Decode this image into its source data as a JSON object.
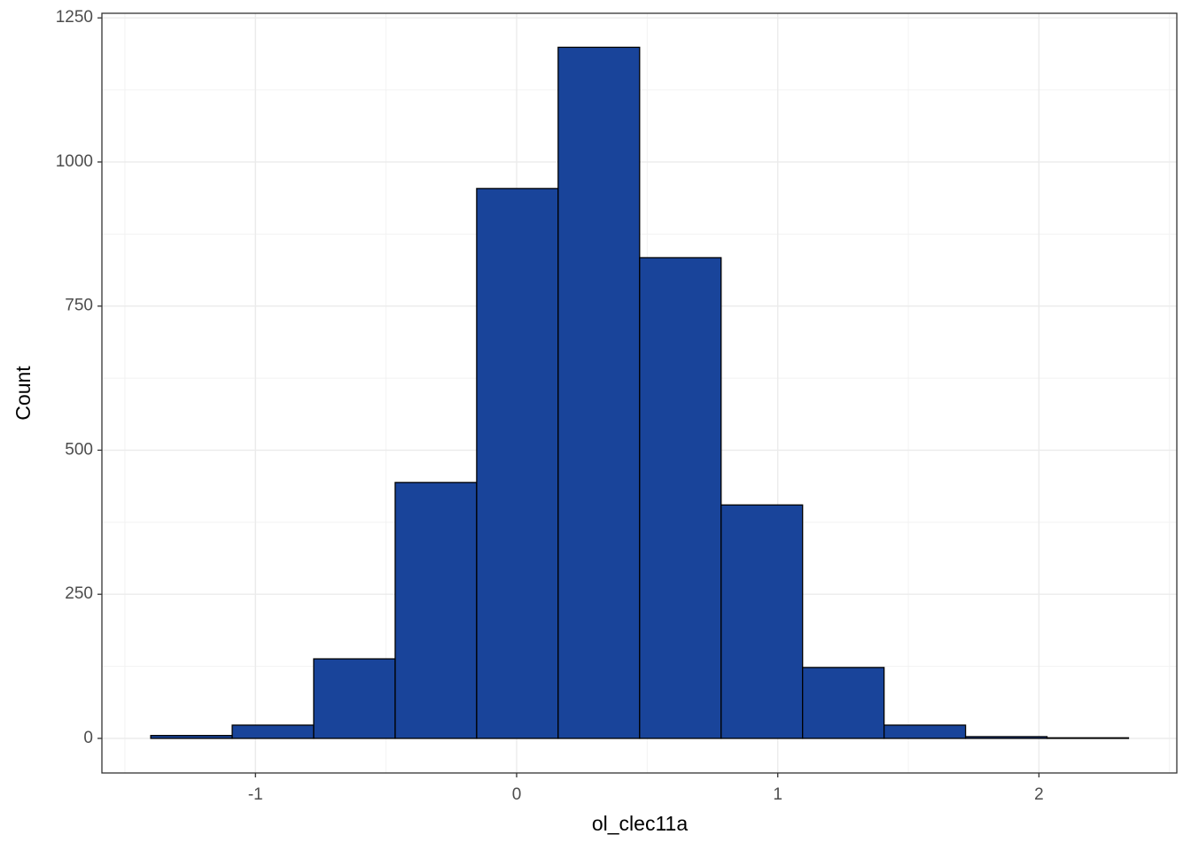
{
  "chart_data": {
    "type": "histogram",
    "x_label": "ol_clec11a",
    "y_label": "Count",
    "bins": [
      -1.401,
      -1.089,
      -0.777,
      -0.465,
      -0.153,
      0.159,
      0.471,
      0.783,
      1.095,
      1.407,
      1.719,
      2.031,
      2.343
    ],
    "counts": [
      5,
      23,
      138,
      444,
      954,
      1199,
      834,
      405,
      123,
      23,
      3,
      1
    ],
    "color": "#19449a",
    "edge_color": "#000000",
    "xlim": [
      -1.588,
      2.528
    ],
    "ylim": [
      -60,
      1258
    ],
    "xticks": [
      -1,
      0,
      1,
      2
    ],
    "yticks": [
      0,
      250,
      500,
      750,
      1000,
      1250
    ],
    "grid": true
  }
}
